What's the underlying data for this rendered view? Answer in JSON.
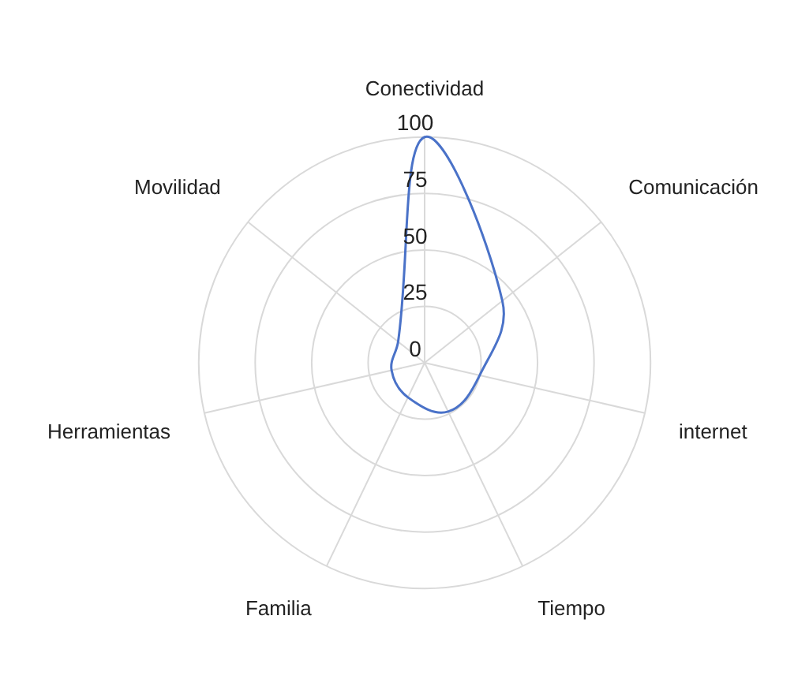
{
  "chart_data": {
    "type": "radar",
    "categories": [
      "Conectividad",
      "Comunicación",
      "internet",
      "Tiempo",
      "Familia",
      "Herramientas",
      "Movilidad"
    ],
    "series": [
      {
        "color": "#4a72c8",
        "values": [
          100,
          44,
          25,
          24,
          17,
          15,
          15
        ]
      }
    ],
    "ylim": [
      0,
      100
    ],
    "yticks": [
      0,
      25,
      50,
      75,
      100
    ],
    "grid": true,
    "legend": false,
    "marker": "none"
  }
}
